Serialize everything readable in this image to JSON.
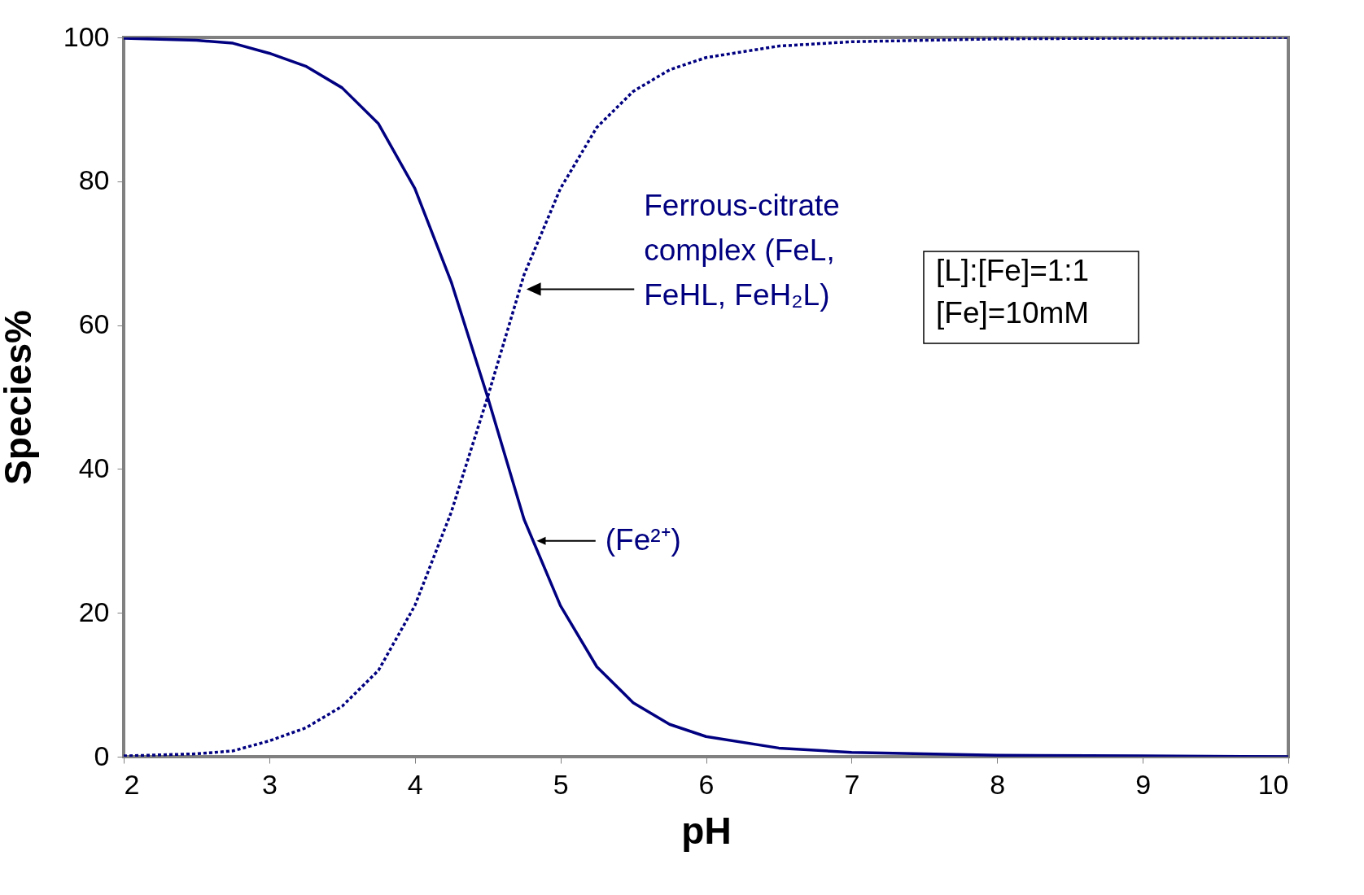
{
  "chart_data": {
    "type": "line",
    "xlabel": "pH",
    "ylabel": "Species%",
    "xlim": [
      2,
      10
    ],
    "ylim": [
      0,
      100
    ],
    "xticks": [
      2,
      3,
      4,
      5,
      6,
      7,
      8,
      9,
      10
    ],
    "yticks": [
      0,
      20,
      40,
      60,
      80,
      100
    ],
    "x": [
      2,
      2.5,
      2.75,
      3,
      3.25,
      3.5,
      3.75,
      4,
      4.25,
      4.5,
      4.75,
      5,
      5.25,
      5.5,
      5.75,
      6,
      6.5,
      7,
      8,
      9,
      10
    ],
    "series": [
      {
        "name": "(Fe²⁺)",
        "color": "#000080",
        "line_style": "solid",
        "values": [
          99.9,
          99.6,
          99.2,
          97.8,
          96,
          93,
          88,
          79,
          66,
          50,
          33,
          21,
          12.5,
          7.5,
          4.5,
          2.8,
          1.2,
          0.6,
          0.2,
          0.1,
          0
        ]
      },
      {
        "name": "Ferrous-citrate complex (FeL, FeHL, FeH₂L)",
        "color": "#000080",
        "line_style": "dashed",
        "values": [
          0.1,
          0.4,
          0.8,
          2.2,
          4,
          7,
          12,
          21,
          34,
          50,
          67,
          79,
          87.5,
          92.5,
          95.5,
          97.2,
          98.8,
          99.4,
          99.8,
          99.9,
          100
        ]
      }
    ],
    "annotations": [
      "[L]:[Fe]=1:1",
      "[Fe]=10mM"
    ]
  }
}
